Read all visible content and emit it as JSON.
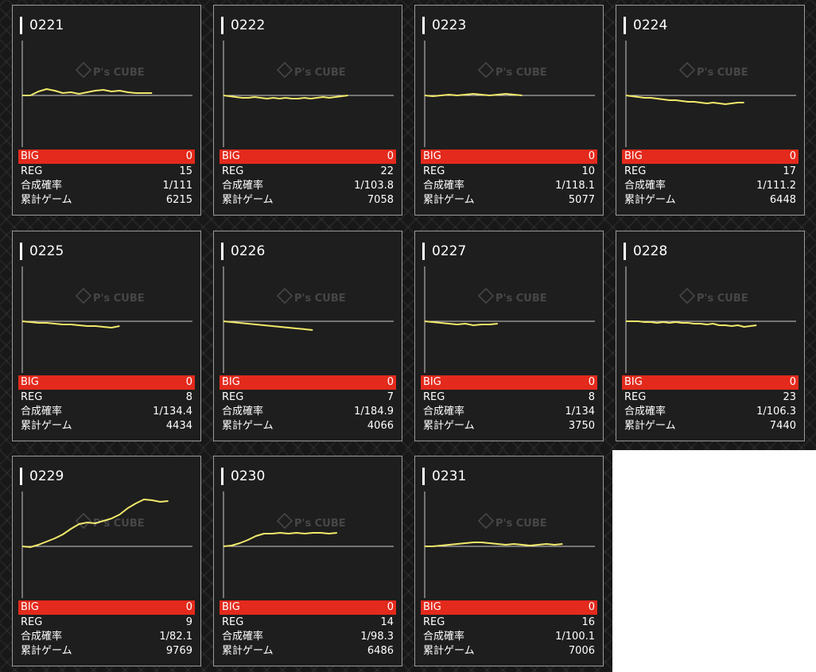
{
  "labels": {
    "big": "BIG",
    "reg": "REG",
    "rate": "合成確率",
    "games": "累計ゲーム",
    "watermark": "P's CUBE"
  },
  "colors": {
    "big_bar": "#e32a1c",
    "line": "#f1e96a",
    "axis": "#cccccc"
  },
  "chart_data": [
    {
      "type": "line",
      "title": "0221",
      "big": "0",
      "reg": "15",
      "rate": "1/111",
      "games": "6215",
      "y": [
        0,
        0,
        5,
        8,
        6,
        3,
        4,
        2,
        4,
        6,
        7,
        5,
        6,
        4,
        3,
        3,
        3
      ]
    },
    {
      "type": "line",
      "title": "0222",
      "big": "0",
      "reg": "22",
      "rate": "1/103.8",
      "games": "7058",
      "y": [
        0,
        -1,
        -2,
        -3,
        -3,
        -2,
        -3,
        -4,
        -3,
        -4,
        -3,
        -4,
        -4,
        -3,
        -4,
        -3,
        -2,
        -3,
        -2,
        -1,
        0
      ]
    },
    {
      "type": "line",
      "title": "0223",
      "big": "0",
      "reg": "10",
      "rate": "1/118.1",
      "games": "5077",
      "y": [
        0,
        -1,
        0,
        1,
        0,
        1,
        2,
        1,
        0,
        1,
        2,
        1,
        0
      ]
    },
    {
      "type": "line",
      "title": "0224",
      "big": "0",
      "reg": "17",
      "rate": "1/111.2",
      "games": "6448",
      "y": [
        0,
        -1,
        -2,
        -3,
        -3,
        -4,
        -5,
        -6,
        -6,
        -7,
        -8,
        -8,
        -9,
        -10,
        -9,
        -10,
        -11,
        -10,
        -9,
        -9
      ]
    },
    {
      "type": "line",
      "title": "0225",
      "big": "0",
      "reg": "8",
      "rate": "1/134.4",
      "games": "4434",
      "y": [
        0,
        -1,
        -2,
        -2,
        -3,
        -4,
        -4,
        -5,
        -6,
        -6,
        -7,
        -8,
        -6
      ]
    },
    {
      "type": "line",
      "title": "0226",
      "big": "0",
      "reg": "7",
      "rate": "1/184.9",
      "games": "4066",
      "y": [
        0,
        -1,
        -2,
        -3,
        -4,
        -5,
        -6,
        -7,
        -8,
        -9,
        -10,
        -11
      ]
    },
    {
      "type": "line",
      "title": "0227",
      "big": "0",
      "reg": "8",
      "rate": "1/134",
      "games": "3750",
      "y": [
        0,
        -1,
        -2,
        -3,
        -4,
        -3,
        -5,
        -4,
        -4,
        -3
      ]
    },
    {
      "type": "line",
      "title": "0228",
      "big": "0",
      "reg": "23",
      "rate": "1/106.3",
      "games": "7440",
      "y": [
        0,
        0,
        0,
        -1,
        -1,
        -2,
        -1,
        -2,
        -1,
        -2,
        -2,
        -3,
        -3,
        -4,
        -3,
        -5,
        -5,
        -6,
        -5,
        -7,
        -6,
        -5
      ]
    },
    {
      "type": "line",
      "title": "0229",
      "big": "0",
      "reg": "9",
      "rate": "1/82.1",
      "games": "9769",
      "y": [
        0,
        -1,
        2,
        6,
        10,
        15,
        22,
        28,
        30,
        29,
        32,
        35,
        40,
        48,
        54,
        59,
        58,
        56,
        57
      ]
    },
    {
      "type": "line",
      "title": "0230",
      "big": "0",
      "reg": "14",
      "rate": "1/98.3",
      "games": "6486",
      "y": [
        0,
        1,
        4,
        8,
        13,
        16,
        16,
        17,
        16,
        17,
        16,
        17,
        17,
        16,
        17
      ]
    },
    {
      "type": "line",
      "title": "0231",
      "big": "0",
      "reg": "16",
      "rate": "1/100.1",
      "games": "7006",
      "y": [
        0,
        0,
        1,
        2,
        3,
        4,
        5,
        5,
        4,
        3,
        2,
        3,
        2,
        1,
        2,
        3,
        2,
        3
      ]
    }
  ]
}
